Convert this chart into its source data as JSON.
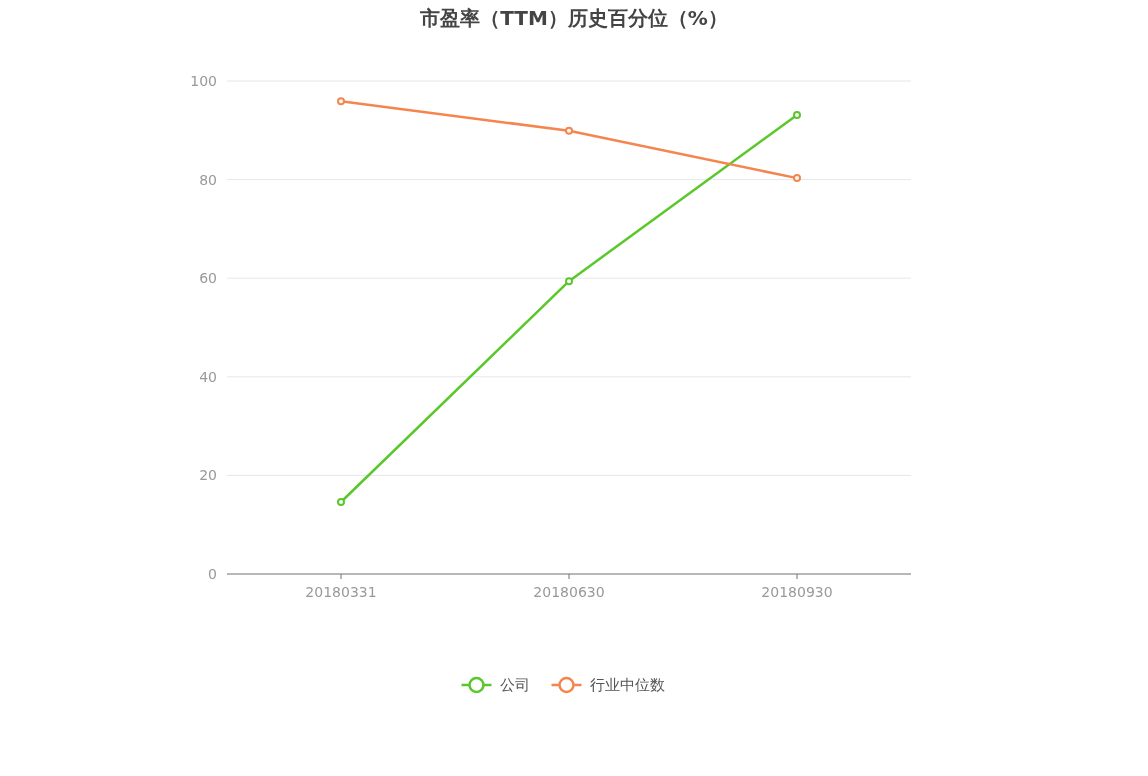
{
  "chart_data": {
    "type": "line",
    "title": "市盈率（TTM）历史百分位（%）",
    "categories": [
      "20180331",
      "20180630",
      "20180930"
    ],
    "series": [
      {
        "name": "公司",
        "color": "#5ac72a",
        "values": [
          14.6,
          59.4,
          93.1
        ]
      },
      {
        "name": "行业中位数",
        "color": "#f5854f",
        "values": [
          95.9,
          89.9,
          80.3
        ]
      }
    ],
    "ylim": [
      0,
      100
    ],
    "yticks": [
      0,
      20,
      40,
      60,
      80,
      100
    ],
    "grid": "y",
    "legend": "bottom",
    "marker": "circle"
  }
}
